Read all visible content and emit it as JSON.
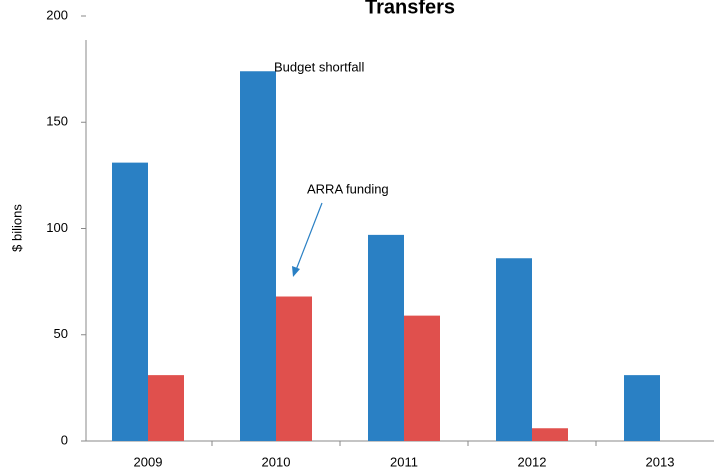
{
  "chart_data": {
    "type": "bar",
    "title": "Transfers",
    "ylabel": "$ bilions",
    "categories": [
      "2009",
      "2010",
      "2011",
      "2012",
      "2013"
    ],
    "series": [
      {
        "name": "Budget shortfall",
        "color": "#2a80c4",
        "values": [
          131,
          174,
          97,
          86,
          31
        ]
      },
      {
        "name": "ARRA funding",
        "color": "#e0504d",
        "values": [
          31,
          68,
          59,
          6,
          null
        ]
      }
    ],
    "ylim": [
      0,
      200
    ],
    "yticks": [
      0,
      50,
      100,
      150,
      200
    ],
    "grid": false
  }
}
